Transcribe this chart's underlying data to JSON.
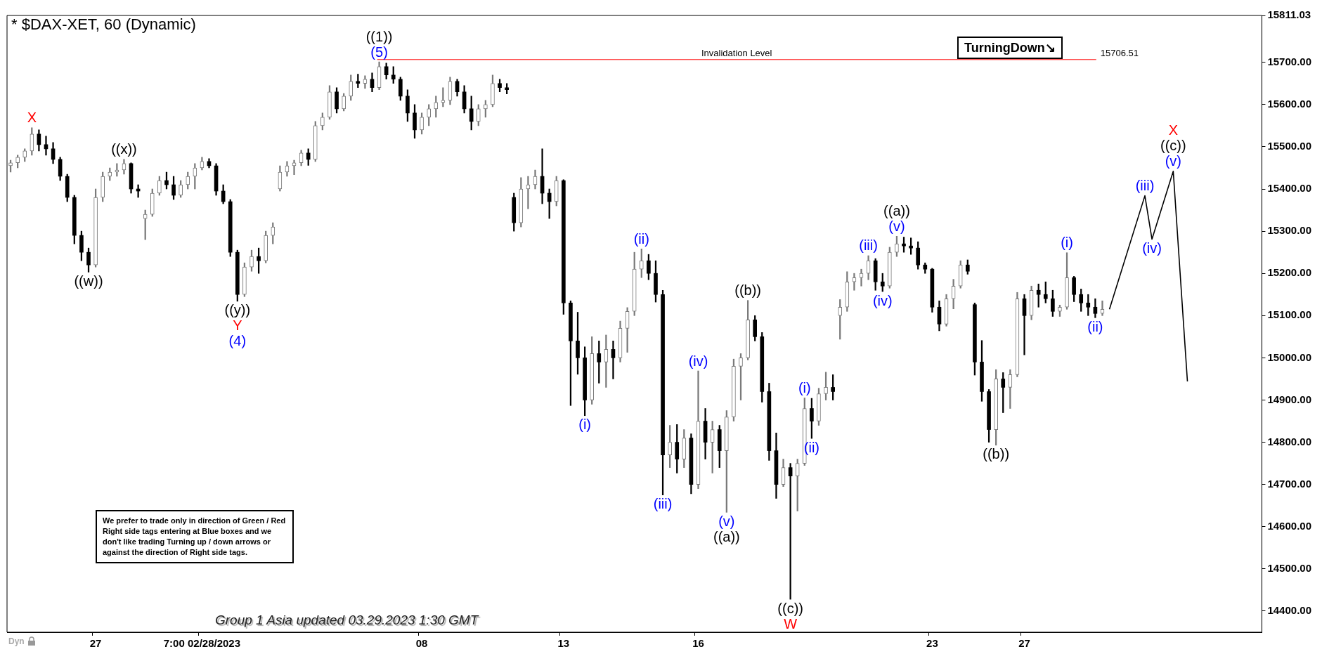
{
  "chart_data": {
    "type": "candlestick",
    "title": "* $DAX-XET, 60 (Dynamic)",
    "categories": [
      null,
      null,
      null,
      null,
      null,
      null,
      null,
      null,
      null,
      null,
      null,
      null,
      "27",
      null,
      null,
      null,
      null,
      null,
      null,
      null,
      null,
      null,
      null,
      null,
      null,
      null,
      null,
      "7:00 02/28/2023",
      null,
      null,
      null,
      null,
      null,
      null,
      null,
      null,
      null,
      null,
      null,
      null,
      null,
      null,
      null,
      null,
      null,
      null,
      null,
      null,
      null,
      null,
      null,
      null,
      null,
      null,
      null,
      null,
      null,
      null,
      "08",
      null,
      null,
      null,
      null,
      null,
      null,
      null,
      null,
      null,
      null,
      null,
      null,
      null,
      null,
      null,
      null,
      null,
      null,
      null,
      "13",
      null,
      null,
      null,
      null,
      null,
      null,
      null,
      null,
      null,
      null,
      null,
      null,
      null,
      null,
      null,
      null,
      null,
      null,
      "16",
      null,
      null,
      null,
      null,
      null,
      null,
      null,
      null,
      null,
      null,
      null,
      null,
      null,
      null,
      null,
      null,
      null,
      null,
      null,
      null,
      null,
      null,
      null,
      null,
      null,
      null,
      null,
      null,
      null,
      null,
      null,
      null,
      "23",
      null,
      null,
      null,
      null,
      null,
      null,
      null,
      null,
      null,
      null,
      null,
      null,
      "27",
      null,
      null,
      null,
      null,
      null,
      null,
      null,
      null,
      null,
      null,
      null,
      null,
      null,
      null,
      null,
      null,
      null,
      null,
      null,
      null,
      null,
      null,
      null,
      null,
      null,
      null,
      null,
      null,
      null,
      null,
      null,
      null,
      null
    ],
    "ohlc": [
      [
        15455,
        15468,
        15440,
        15462
      ],
      [
        15462,
        15480,
        15450,
        15475
      ],
      [
        15475,
        15495,
        15465,
        15490
      ],
      [
        15490,
        15545,
        15480,
        15530
      ],
      [
        15530,
        15540,
        15490,
        15505
      ],
      [
        15505,
        15525,
        15480,
        15495
      ],
      [
        15495,
        15510,
        15460,
        15470
      ],
      [
        15470,
        15475,
        15420,
        15430
      ],
      [
        15430,
        15435,
        15370,
        15380
      ],
      [
        15380,
        15385,
        15270,
        15290
      ],
      [
        15290,
        15300,
        15230,
        15250
      ],
      [
        15250,
        15260,
        15203,
        15220
      ],
      [
        15220,
        15400,
        15215,
        15380
      ],
      [
        15380,
        15440,
        15370,
        15430
      ],
      [
        15430,
        15450,
        15420,
        15440
      ],
      [
        15440,
        15460,
        15430,
        15445
      ],
      [
        15445,
        15470,
        15435,
        15460
      ],
      [
        15460,
        15462,
        15390,
        15400
      ],
      [
        15400,
        15410,
        15380,
        15395
      ],
      [
        15330,
        15350,
        15280,
        15340
      ],
      [
        15340,
        15400,
        15335,
        15390
      ],
      [
        15390,
        15430,
        15385,
        15420
      ],
      [
        15420,
        15440,
        15400,
        15410
      ],
      [
        15410,
        15430,
        15375,
        15385
      ],
      [
        15385,
        15420,
        15380,
        15410
      ],
      [
        15410,
        15440,
        15400,
        15430
      ],
      [
        15430,
        15460,
        15400,
        15450
      ],
      [
        15450,
        15475,
        15445,
        15465
      ],
      [
        15465,
        15472,
        15450,
        15455
      ],
      [
        15455,
        15460,
        15385,
        15395
      ],
      [
        15395,
        15410,
        15365,
        15370
      ],
      [
        15370,
        15375,
        15240,
        15250
      ],
      [
        15250,
        15255,
        15134,
        15150
      ],
      [
        15150,
        15225,
        15145,
        15215
      ],
      [
        15215,
        15255,
        15205,
        15240
      ],
      [
        15240,
        15260,
        15200,
        15230
      ],
      [
        15230,
        15300,
        15225,
        15290
      ],
      [
        15290,
        15320,
        15270,
        15310
      ],
      [
        15400,
        15455,
        15395,
        15440
      ],
      [
        15440,
        15465,
        15430,
        15455
      ],
      [
        15455,
        15468,
        15434,
        15462
      ],
      [
        15462,
        15492,
        15455,
        15485
      ],
      [
        15485,
        15495,
        15456,
        15470
      ],
      [
        15470,
        15560,
        15465,
        15550
      ],
      [
        15550,
        15580,
        15540,
        15570
      ],
      [
        15570,
        15645,
        15565,
        15630
      ],
      [
        15630,
        15640,
        15580,
        15590
      ],
      [
        15590,
        15626,
        15585,
        15620
      ],
      [
        15620,
        15670,
        15610,
        15655
      ],
      [
        15655,
        15672,
        15640,
        15650
      ],
      [
        15650,
        15668,
        15638,
        15660
      ],
      [
        15660,
        15675,
        15630,
        15640
      ],
      [
        15640,
        15701,
        15635,
        15690
      ],
      [
        15690,
        15698,
        15660,
        15670
      ],
      [
        15670,
        15690,
        15650,
        15660
      ],
      [
        15660,
        15665,
        15610,
        15620
      ],
      [
        15620,
        15635,
        15560,
        15580
      ],
      [
        15580,
        15600,
        15520,
        15540
      ],
      [
        15540,
        15580,
        15530,
        15570
      ],
      [
        15570,
        15600,
        15550,
        15590
      ],
      [
        15590,
        15620,
        15570,
        15605
      ],
      [
        15605,
        15640,
        15595,
        15610
      ],
      [
        15610,
        15665,
        15600,
        15655
      ],
      [
        15655,
        15660,
        15620,
        15630
      ],
      [
        15630,
        15645,
        15580,
        15590
      ],
      [
        15590,
        15620,
        15540,
        15560
      ],
      [
        15560,
        15600,
        15550,
        15590
      ],
      [
        15590,
        15610,
        15570,
        15600
      ],
      [
        15600,
        15670,
        15595,
        15650
      ],
      [
        15650,
        15660,
        15630,
        15640
      ],
      [
        15640,
        15650,
        15625,
        15635
      ],
      [
        15380,
        15390,
        15300,
        15320
      ],
      [
        15320,
        15427,
        15310,
        15400
      ],
      [
        15400,
        15430,
        15353,
        15410
      ],
      [
        15410,
        15445,
        15400,
        15430
      ],
      [
        15430,
        15495,
        15365,
        15390
      ],
      [
        15390,
        15400,
        15330,
        15370
      ],
      [
        15370,
        15430,
        15360,
        15420
      ],
      [
        15420,
        15422,
        15103,
        15130
      ],
      [
        15130,
        15135,
        14887,
        15040
      ],
      [
        15040,
        15108,
        14961,
        15000
      ],
      [
        15000,
        15026,
        14863,
        14900
      ],
      [
        14900,
        15050,
        14890,
        15010
      ],
      [
        15010,
        15040,
        14940,
        14990
      ],
      [
        14990,
        15054,
        14930,
        15020
      ],
      [
        15020,
        15040,
        14950,
        15000
      ],
      [
        15000,
        15087,
        14990,
        15070
      ],
      [
        15070,
        15119,
        15013,
        15110
      ],
      [
        15110,
        15250,
        15100,
        15210
      ],
      [
        15210,
        15258,
        15190,
        15230
      ],
      [
        15230,
        15245,
        15185,
        15200
      ],
      [
        15200,
        15230,
        15132,
        15150
      ],
      [
        15150,
        15160,
        14675,
        14770
      ],
      [
        14770,
        14840,
        14740,
        14800
      ],
      [
        14800,
        14842,
        14727,
        14760
      ],
      [
        14760,
        14830,
        14740,
        14810
      ],
      [
        14810,
        14820,
        14678,
        14700
      ],
      [
        14700,
        14969,
        14690,
        14850
      ],
      [
        14850,
        14880,
        14760,
        14800
      ],
      [
        14800,
        14850,
        14727,
        14830
      ],
      [
        14830,
        14840,
        14740,
        14780
      ],
      [
        14780,
        14875,
        14634,
        14860
      ],
      [
        14860,
        14997,
        14850,
        14980
      ],
      [
        14980,
        15010,
        14900,
        15000
      ],
      [
        15000,
        15136,
        14995,
        15090
      ],
      [
        15090,
        15100,
        15040,
        15050
      ],
      [
        15050,
        15060,
        14895,
        14920
      ],
      [
        14920,
        14940,
        14757,
        14780
      ],
      [
        14780,
        14822,
        14667,
        14700
      ],
      [
        14700,
        14760,
        14695,
        14740
      ],
      [
        14740,
        14750,
        14428,
        14720
      ],
      [
        14720,
        14760,
        14637,
        14750
      ],
      [
        14750,
        14905,
        14745,
        14880
      ],
      [
        14880,
        14904,
        14809,
        14850
      ],
      [
        14850,
        14928,
        14840,
        14915
      ],
      [
        14915,
        14966,
        14900,
        14930
      ],
      [
        14930,
        14960,
        14900,
        14920
      ],
      [
        15100,
        15138,
        15044,
        15120
      ],
      [
        15120,
        15204,
        15110,
        15180
      ],
      [
        15180,
        15200,
        15160,
        15190
      ],
      [
        15190,
        15210,
        15170,
        15200
      ],
      [
        15200,
        15242,
        15185,
        15230
      ],
      [
        15230,
        15235,
        15160,
        15180
      ],
      [
        15180,
        15200,
        15157,
        15170
      ],
      [
        15170,
        15262,
        15165,
        15250
      ],
      [
        15250,
        15288,
        15240,
        15270
      ],
      [
        15270,
        15286,
        15250,
        15265
      ],
      [
        15265,
        15284,
        15245,
        15260
      ],
      [
        15260,
        15275,
        15210,
        15220
      ],
      [
        15220,
        15225,
        15200,
        15210
      ],
      [
        15210,
        15212,
        15108,
        15120
      ],
      [
        15120,
        15135,
        15064,
        15080
      ],
      [
        15080,
        15150,
        15075,
        15140
      ],
      [
        15140,
        15186,
        15116,
        15170
      ],
      [
        15170,
        15230,
        15165,
        15220
      ],
      [
        15220,
        15232,
        15198,
        15205
      ],
      [
        15126,
        15130,
        14959,
        14990
      ],
      [
        14990,
        15041,
        14897,
        14920
      ],
      [
        14920,
        14925,
        14800,
        14830
      ],
      [
        14830,
        14972,
        14793,
        14950
      ],
      [
        14950,
        14965,
        14870,
        14930
      ],
      [
        14930,
        14972,
        14880,
        14960
      ],
      [
        14960,
        15155,
        14955,
        15140
      ],
      [
        15140,
        15150,
        15007,
        15100
      ],
      [
        15100,
        15170,
        15090,
        15160
      ],
      [
        15160,
        15175,
        15120,
        15150
      ],
      [
        15150,
        15180,
        15130,
        15140
      ],
      [
        15140,
        15160,
        15098,
        15110
      ],
      [
        15110,
        15125,
        15098,
        15120
      ],
      [
        15120,
        15249,
        15115,
        15190
      ],
      [
        15190,
        15193,
        15133,
        15150
      ],
      [
        15150,
        15163,
        15110,
        15130
      ],
      [
        15130,
        15150,
        15100,
        15120
      ],
      [
        15120,
        15140,
        15095,
        15105
      ],
      [
        15105,
        15135,
        15100,
        15115
      ],
      null,
      null,
      null,
      null,
      null,
      null,
      null,
      null,
      null,
      null,
      null,
      null,
      null,
      null,
      null,
      null,
      null,
      null,
      null,
      null,
      null,
      null
    ],
    "series": [
      {
        "type": "line",
        "color": "#000000",
        "values": [
          null,
          null,
          null,
          null,
          null,
          null,
          null,
          null,
          null,
          null,
          null,
          null,
          null,
          null,
          null,
          null,
          null,
          null,
          null,
          null,
          null,
          null,
          null,
          null,
          null,
          null,
          null,
          null,
          null,
          null,
          null,
          null,
          null,
          null,
          null,
          null,
          null,
          null,
          null,
          null,
          null,
          null,
          null,
          null,
          null,
          null,
          null,
          null,
          null,
          null,
          null,
          null,
          null,
          null,
          null,
          null,
          null,
          null,
          null,
          null,
          null,
          null,
          null,
          null,
          null,
          null,
          null,
          null,
          null,
          null,
          null,
          null,
          null,
          null,
          null,
          null,
          null,
          null,
          null,
          null,
          null,
          null,
          null,
          null,
          null,
          null,
          null,
          null,
          null,
          null,
          null,
          null,
          null,
          null,
          null,
          null,
          null,
          null,
          null,
          null,
          null,
          null,
          null,
          null,
          null,
          null,
          null,
          null,
          null,
          null,
          null,
          null,
          null,
          null,
          null,
          null,
          null,
          null,
          null,
          null,
          null,
          null,
          null,
          null,
          null,
          null,
          null,
          null,
          null,
          null,
          null,
          null,
          null,
          null,
          null,
          null,
          null,
          null,
          null,
          null,
          null,
          null,
          null,
          null,
          null,
          null,
          null,
          null,
          null,
          null,
          null,
          null,
          null,
          null,
          null,
          15115,
          null,
          null,
          null,
          null,
          15384,
          15281,
          null,
          null,
          15442,
          null,
          14944,
          null,
          null,
          null,
          null,
          null,
          null,
          null,
          null,
          null,
          null
        ]
      }
    ],
    "ylim": [
      14350,
      15811.03
    ],
    "yticks": [
      {
        "value": 15811.03,
        "label": "15811.03"
      },
      {
        "value": 15700,
        "label": "15700.00"
      },
      {
        "value": 15600,
        "label": "15600.00"
      },
      {
        "value": 15500,
        "label": "15500.00"
      },
      {
        "value": 15400,
        "label": "15400.00"
      },
      {
        "value": 15300,
        "label": "15300.00"
      },
      {
        "value": 15200,
        "label": "15200.00"
      },
      {
        "value": 15100,
        "label": "15100.00"
      },
      {
        "value": 15000,
        "label": "15000.00"
      },
      {
        "value": 14900,
        "label": "14900.00"
      },
      {
        "value": 14800,
        "label": "14800.00"
      },
      {
        "value": 14700,
        "label": "14700.00"
      },
      {
        "value": 14600,
        "label": "14600.00"
      },
      {
        "value": 14500,
        "label": "14500.00"
      },
      {
        "value": 14400,
        "label": "14400.00"
      }
    ],
    "ref_lines": [
      {
        "axis": "y",
        "value": 15706.51,
        "label": "Invalidation Level",
        "color": "#ff0000"
      }
    ],
    "annotations": [
      "Group 1 Asia updated 03.29.2023 1:30 GMT",
      "We prefer to trade only in direction of Green / Red Right side tags entering at Blue boxes and we don't like trading Turning up / down arrows or against the direction of Right side tags.",
      "TurningDown↘",
      "Dyn",
      "15706.51",
      {
        "text": "X",
        "y": 15545
      },
      {
        "text": "((w))",
        "y": 15203
      },
      {
        "text": "((x))",
        "y": 15470
      },
      {
        "text": "((y))",
        "y": 15134
      },
      {
        "text": "Y",
        "y": 15134
      },
      {
        "text": "(4)",
        "y": 15134
      },
      {
        "text": "(5)",
        "y": 15701
      },
      {
        "text": "((1))",
        "y": 15701
      },
      {
        "text": "(i)",
        "y": 14863
      },
      {
        "text": "(ii)",
        "y": 15258
      },
      {
        "text": "(iii)",
        "y": 14675
      },
      {
        "text": "(iv)",
        "y": 14969
      },
      {
        "text": "(v)",
        "y": 14634
      },
      {
        "text": "((a))",
        "y": 14634
      },
      {
        "text": "((b))",
        "y": 15136
      },
      {
        "text": "((c))",
        "y": 14428
      },
      {
        "text": "W",
        "y": 14428
      },
      {
        "text": "(i)",
        "y": 14905
      },
      {
        "text": "(ii)",
        "y": 14809
      },
      {
        "text": "(iii)",
        "y": 15242
      },
      {
        "text": "(iv)",
        "y": 15157
      },
      {
        "text": "(v)",
        "y": 15288
      },
      {
        "text": "((a))",
        "y": 15288
      },
      {
        "text": "((b))",
        "y": 14793
      },
      {
        "text": "(i)",
        "y": 15249
      },
      {
        "text": "(ii)",
        "y": 15095
      },
      {
        "text": "(iii)",
        "y": 15384
      },
      {
        "text": "(iv)",
        "y": 15281
      },
      {
        "text": "(v)",
        "y": 15442
      },
      {
        "text": "((c))",
        "y": 15442
      },
      {
        "text": "X",
        "y": 15442
      }
    ]
  }
}
